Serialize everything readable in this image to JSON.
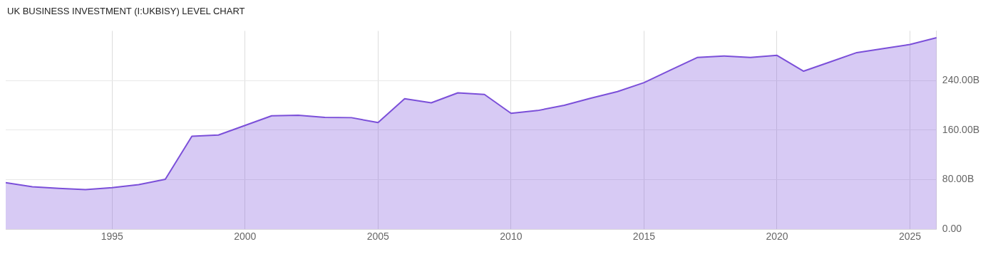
{
  "chart_data": {
    "type": "area",
    "title": "UK BUSINESS INVESTMENT (I:UKBISY) LEVEL CHART",
    "x": [
      1991,
      1992,
      1993,
      1994,
      1995,
      1996,
      1997,
      1998,
      1999,
      2000,
      2001,
      2002,
      2003,
      2004,
      2005,
      2006,
      2007,
      2008,
      2009,
      2010,
      2011,
      2012,
      2013,
      2014,
      2015,
      2016,
      2017,
      2018,
      2019,
      2020,
      2021,
      2022,
      2023,
      2024,
      2025,
      2026
    ],
    "series": [
      {
        "color": "#7b4fd9",
        "values": [
          75,
          68.5,
          66,
          64,
          67,
          72,
          80.5,
          150,
          152,
          167.5,
          183,
          184,
          180.5,
          180,
          172,
          210.5,
          204,
          220,
          217.5,
          187,
          191.5,
          200,
          211.5,
          222,
          236.5,
          257,
          277,
          279.5,
          277,
          280.5,
          255,
          270,
          285,
          291.5,
          298,
          309
        ]
      }
    ],
    "xlim": [
      1991,
      2026
    ],
    "xticks": [
      1995,
      2000,
      2005,
      2010,
      2015,
      2020,
      2025
    ],
    "ylim": [
      0,
      320
    ],
    "yticks": [
      {
        "value": 0,
        "label": "0.00"
      },
      {
        "value": 80,
        "label": "80.00B"
      },
      {
        "value": 160,
        "label": "160.00B"
      },
      {
        "value": 240,
        "label": "240.00B"
      }
    ],
    "grid": true
  }
}
